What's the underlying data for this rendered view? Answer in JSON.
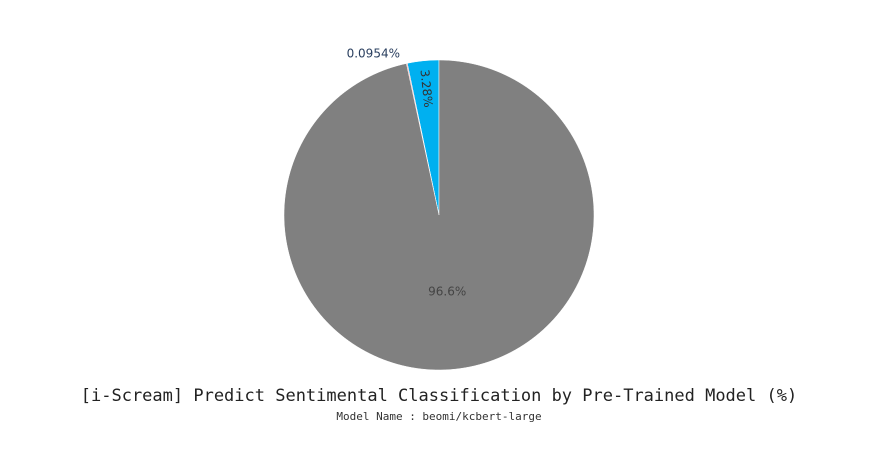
{
  "chart_data": {
    "type": "pie",
    "title": "[i-Scream] Predict Sentimental Classification by Pre-Trained Model (%)",
    "subtitle": "Model Name : beomi/kcbert-large",
    "slices": [
      {
        "value": 3.28,
        "label": "3.28%",
        "color": "#00b0f0"
      },
      {
        "value": 0.0954,
        "label": "0.0954%",
        "color": "#f08080"
      },
      {
        "value": 96.6,
        "label": "96.6%",
        "color": "#808080"
      }
    ],
    "start_angle_deg": 0,
    "direction": "counterclockwise"
  }
}
